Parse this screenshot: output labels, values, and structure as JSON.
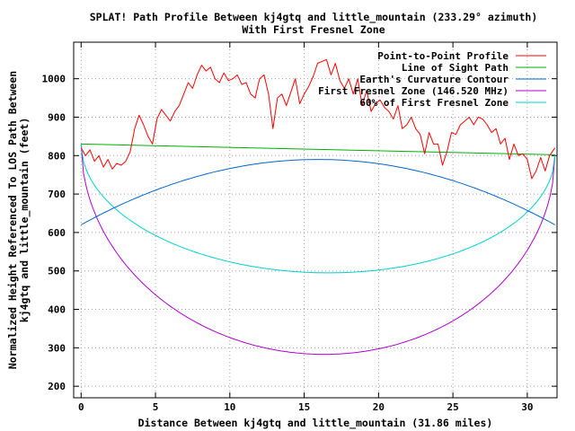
{
  "chart_data": {
    "type": "line",
    "title": "SPLAT! Path Profile Between kj4gtq and little_mountain (233.29° azimuth)",
    "subtitle": "With First Fresnel Zone",
    "xlabel": "Distance Between kj4gtq and little_mountain (31.86 miles)",
    "ylabel_line1": "Normalized Height Referenced To LOS Path Between",
    "ylabel_line2": "kj4gtq and little_mountain (feet)",
    "xlim": [
      -0.5,
      32
    ],
    "ylim": [
      170,
      1095
    ],
    "xticks": [
      0,
      5,
      10,
      15,
      20,
      25,
      30
    ],
    "yticks": [
      200,
      300,
      400,
      500,
      600,
      700,
      800,
      900,
      1000
    ],
    "grid": true,
    "legend_position": "top-right",
    "series": [
      {
        "name": "Point-to-Point Profile",
        "color": "#ff0000",
        "x": [
          0,
          0.3,
          0.6,
          0.9,
          1.2,
          1.5,
          1.8,
          2.1,
          2.4,
          2.7,
          3.0,
          3.3,
          3.6,
          3.9,
          4.2,
          4.5,
          4.8,
          5.1,
          5.4,
          5.7,
          6.0,
          6.3,
          6.6,
          6.9,
          7.2,
          7.5,
          7.8,
          8.1,
          8.4,
          8.7,
          9.0,
          9.3,
          9.6,
          9.9,
          10.2,
          10.5,
          10.8,
          11.1,
          11.4,
          11.7,
          12.0,
          12.3,
          12.6,
          12.9,
          13.2,
          13.5,
          13.8,
          14.1,
          14.4,
          14.7,
          15.0,
          15.3,
          15.6,
          15.9,
          16.2,
          16.5,
          16.8,
          17.1,
          17.4,
          17.7,
          18.0,
          18.3,
          18.6,
          18.9,
          19.2,
          19.5,
          19.8,
          20.1,
          20.4,
          20.7,
          21.0,
          21.3,
          21.6,
          21.9,
          22.2,
          22.5,
          22.8,
          23.1,
          23.4,
          23.7,
          24.0,
          24.3,
          24.6,
          24.9,
          25.2,
          25.5,
          25.8,
          26.1,
          26.4,
          26.7,
          27.0,
          27.3,
          27.6,
          27.9,
          28.2,
          28.5,
          28.8,
          29.1,
          29.4,
          29.7,
          30.0,
          30.3,
          30.6,
          30.9,
          31.2,
          31.5,
          31.86
        ],
        "y": [
          820,
          800,
          815,
          785,
          800,
          770,
          790,
          765,
          780,
          775,
          785,
          810,
          870,
          905,
          880,
          850,
          830,
          895,
          920,
          905,
          890,
          915,
          930,
          960,
          990,
          975,
          1010,
          1035,
          1020,
          1030,
          1000,
          990,
          1015,
          995,
          1000,
          1010,
          985,
          990,
          960,
          950,
          1000,
          1010,
          960,
          870,
          950,
          960,
          930,
          965,
          1000,
          935,
          960,
          980,
          1005,
          1040,
          1045,
          1050,
          1010,
          1040,
          995,
          975,
          1000,
          960,
          1000,
          930,
          970,
          915,
          935,
          945,
          925,
          915,
          895,
          930,
          870,
          880,
          900,
          870,
          855,
          805,
          860,
          830,
          830,
          775,
          810,
          860,
          855,
          880,
          890,
          900,
          880,
          900,
          895,
          880,
          860,
          870,
          830,
          845,
          790,
          830,
          800,
          805,
          790,
          740,
          760,
          795,
          760,
          800,
          820
        ]
      },
      {
        "name": "Line of Sight Path",
        "color": "#00b000",
        "x": [
          0,
          31.86
        ],
        "y": [
          830,
          802
        ]
      },
      {
        "name": "Earth's Curvature Contour",
        "color": "#0066cc",
        "type": "parabola",
        "x": [
          0,
          15.93,
          31.86
        ],
        "y": [
          620,
          790,
          620
        ]
      },
      {
        "name": "First Fresnel Zone (146.520 MHz)",
        "color": "#b000d0",
        "type": "ellipse",
        "x": [
          0,
          16.5,
          31.86
        ],
        "y": [
          830,
          283,
          802
        ]
      },
      {
        "name": "60% of First Fresnel Zone",
        "color": "#00d0d0",
        "type": "ellipse",
        "x": [
          0,
          16.5,
          31.86
        ],
        "y": [
          830,
          495,
          802
        ]
      }
    ]
  }
}
